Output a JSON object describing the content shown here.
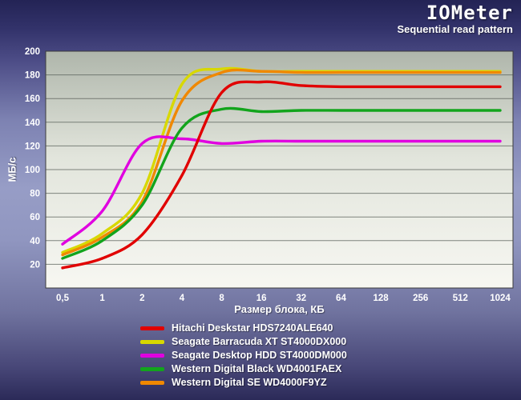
{
  "chart_data": {
    "type": "line",
    "title": "IOMeter",
    "subtitle": "Sequential read pattern",
    "ylabel": "МБ/с",
    "xlabel": "Размер блока, КБ",
    "x_scale": "log2-categories",
    "categories": [
      "0,5",
      "1",
      "2",
      "4",
      "8",
      "16",
      "32",
      "64",
      "128",
      "256",
      "512",
      "1024"
    ],
    "ylim": [
      0,
      200
    ],
    "y_ticks": [
      20,
      40,
      60,
      80,
      100,
      120,
      140,
      160,
      180,
      200
    ],
    "grid": "horizontal-only",
    "legend_position": "bottom",
    "draw_order": [
      1,
      4,
      2,
      3,
      0
    ],
    "series": [
      {
        "name": "Hitachi Deskstar HDS7240ALE640",
        "color": "#e10000",
        "values": [
          17,
          25,
          45,
          95,
          165,
          174,
          171,
          170,
          170,
          170,
          170,
          170
        ]
      },
      {
        "name": "Seagate Barracuda XT ST4000DX000",
        "color": "#d8d800",
        "values": [
          30,
          46,
          80,
          172,
          185,
          183,
          183,
          183,
          183,
          183,
          183,
          183
        ]
      },
      {
        "name": "Seagate Desktop HDD ST4000DM000",
        "color": "#e000e0",
        "values": [
          37,
          65,
          122,
          126,
          122,
          124,
          124,
          124,
          124,
          124,
          124,
          124
        ]
      },
      {
        "name": "Western Digital Black WD4001FAEX",
        "color": "#12a41c",
        "values": [
          25,
          40,
          70,
          135,
          151,
          149,
          150,
          150,
          150,
          150,
          150,
          150
        ]
      },
      {
        "name": "Western Digital SE WD4000F9YZ",
        "color": "#f08800",
        "values": [
          28,
          43,
          73,
          158,
          182,
          183,
          182,
          182,
          182,
          182,
          182,
          182
        ]
      }
    ]
  }
}
